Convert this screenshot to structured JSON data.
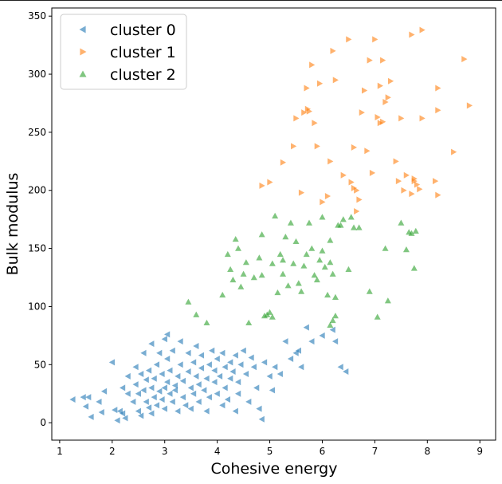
{
  "chart_data": {
    "type": "scatter",
    "xlabel": "Cohesive energy",
    "ylabel": "Bulk modulus",
    "xlim": [
      0.85,
      9.3
    ],
    "ylim": [
      -15,
      357
    ],
    "xticks": [
      1,
      2,
      3,
      4,
      5,
      6,
      7,
      8,
      9
    ],
    "yticks": [
      0,
      50,
      100,
      150,
      200,
      250,
      300,
      350
    ],
    "legend_position": "top-left",
    "grid": false,
    "series": [
      {
        "name": "cluster 0",
        "marker": "triangle-left",
        "color": "#1f77b4",
        "points": [
          [
            1.25,
            20
          ],
          [
            1.45,
            22
          ],
          [
            1.5,
            14
          ],
          [
            1.55,
            22
          ],
          [
            1.6,
            5
          ],
          [
            1.75,
            18
          ],
          [
            1.8,
            9
          ],
          [
            1.85,
            27
          ],
          [
            2.0,
            52
          ],
          [
            2.05,
            11
          ],
          [
            2.1,
            2
          ],
          [
            2.15,
            10
          ],
          [
            2.2,
            8
          ],
          [
            2.2,
            30
          ],
          [
            2.25,
            4
          ],
          [
            2.3,
            40
          ],
          [
            2.3,
            25
          ],
          [
            2.4,
            18
          ],
          [
            2.45,
            48
          ],
          [
            2.45,
            33
          ],
          [
            2.5,
            10
          ],
          [
            2.5,
            25
          ],
          [
            2.55,
            42
          ],
          [
            2.55,
            6
          ],
          [
            2.6,
            28
          ],
          [
            2.6,
            60
          ],
          [
            2.65,
            18
          ],
          [
            2.65,
            37
          ],
          [
            2.7,
            13
          ],
          [
            2.7,
            45
          ],
          [
            2.75,
            30
          ],
          [
            2.75,
            8
          ],
          [
            2.75,
            68
          ],
          [
            2.8,
            22
          ],
          [
            2.8,
            38
          ],
          [
            2.85,
            50
          ],
          [
            2.85,
            15
          ],
          [
            2.9,
            27
          ],
          [
            2.9,
            60
          ],
          [
            2.95,
            20
          ],
          [
            2.95,
            42
          ],
          [
            3.0,
            72
          ],
          [
            3.0,
            30
          ],
          [
            3.0,
            12
          ],
          [
            3.05,
            35
          ],
          [
            3.05,
            55
          ],
          [
            3.05,
            76
          ],
          [
            3.1,
            25
          ],
          [
            3.1,
            45
          ],
          [
            3.15,
            18
          ],
          [
            3.15,
            62
          ],
          [
            3.2,
            32
          ],
          [
            3.2,
            28
          ],
          [
            3.25,
            40
          ],
          [
            3.25,
            10
          ],
          [
            3.3,
            50
          ],
          [
            3.3,
            70
          ],
          [
            3.35,
            22
          ],
          [
            3.35,
            36
          ],
          [
            3.4,
            15
          ],
          [
            3.45,
            44
          ],
          [
            3.45,
            60
          ],
          [
            3.5,
            30
          ],
          [
            3.5,
            12
          ],
          [
            3.55,
            52
          ],
          [
            3.55,
            25
          ],
          [
            3.6,
            66
          ],
          [
            3.6,
            40
          ],
          [
            3.65,
            33
          ],
          [
            3.65,
            18
          ],
          [
            3.7,
            47
          ],
          [
            3.7,
            58
          ],
          [
            3.75,
            28
          ],
          [
            3.8,
            38
          ],
          [
            3.8,
            10
          ],
          [
            3.85,
            50
          ],
          [
            3.85,
            22
          ],
          [
            3.9,
            62
          ],
          [
            3.95,
            35
          ],
          [
            3.95,
            45
          ],
          [
            4.0,
            55
          ],
          [
            4.0,
            25
          ],
          [
            4.05,
            40
          ],
          [
            4.1,
            60
          ],
          [
            4.1,
            15
          ],
          [
            4.15,
            48
          ],
          [
            4.15,
            30
          ],
          [
            4.2,
            20
          ],
          [
            4.25,
            52
          ],
          [
            4.25,
            38
          ],
          [
            4.3,
            44
          ],
          [
            4.35,
            58
          ],
          [
            4.35,
            10
          ],
          [
            4.4,
            35
          ],
          [
            4.4,
            25
          ],
          [
            4.45,
            50
          ],
          [
            4.5,
            62
          ],
          [
            4.55,
            42
          ],
          [
            4.6,
            18
          ],
          [
            4.65,
            56
          ],
          [
            4.7,
            48
          ],
          [
            4.75,
            30
          ],
          [
            4.8,
            12
          ],
          [
            4.85,
            3
          ],
          [
            4.9,
            52
          ],
          [
            5.0,
            40
          ],
          [
            5.05,
            28
          ],
          [
            5.1,
            48
          ],
          [
            5.2,
            42
          ],
          [
            5.3,
            70
          ],
          [
            5.4,
            55
          ],
          [
            5.5,
            60
          ],
          [
            5.55,
            62
          ],
          [
            5.6,
            48
          ],
          [
            5.7,
            82
          ],
          [
            5.8,
            70
          ],
          [
            6.0,
            75
          ],
          [
            6.2,
            80
          ],
          [
            6.25,
            70
          ],
          [
            6.35,
            48
          ],
          [
            6.45,
            44
          ]
        ]
      },
      {
        "name": "cluster 1",
        "marker": "triangle-right",
        "color": "#ff7f0e",
        "points": [
          [
            4.85,
            204
          ],
          [
            5.0,
            207
          ],
          [
            5.25,
            224
          ],
          [
            5.45,
            238
          ],
          [
            5.5,
            262
          ],
          [
            5.6,
            198
          ],
          [
            5.65,
            267
          ],
          [
            5.7,
            288
          ],
          [
            5.72,
            270
          ],
          [
            5.75,
            268
          ],
          [
            5.8,
            308
          ],
          [
            5.85,
            258
          ],
          [
            5.9,
            238
          ],
          [
            5.95,
            292
          ],
          [
            6.0,
            190
          ],
          [
            6.1,
            195
          ],
          [
            6.15,
            225
          ],
          [
            6.2,
            320
          ],
          [
            6.25,
            295
          ],
          [
            6.4,
            213
          ],
          [
            6.5,
            330
          ],
          [
            6.55,
            207
          ],
          [
            6.6,
            237
          ],
          [
            6.6,
            202
          ],
          [
            6.65,
            200
          ],
          [
            6.65,
            182
          ],
          [
            6.7,
            192
          ],
          [
            6.75,
            267
          ],
          [
            6.8,
            286
          ],
          [
            6.85,
            234
          ],
          [
            6.9,
            312
          ],
          [
            6.95,
            215
          ],
          [
            7.0,
            330
          ],
          [
            7.05,
            263
          ],
          [
            7.1,
            258
          ],
          [
            7.1,
            290
          ],
          [
            7.15,
            312
          ],
          [
            7.15,
            259
          ],
          [
            7.2,
            276
          ],
          [
            7.25,
            280
          ],
          [
            7.3,
            294
          ],
          [
            7.4,
            225
          ],
          [
            7.45,
            208
          ],
          [
            7.5,
            262
          ],
          [
            7.55,
            200
          ],
          [
            7.6,
            213
          ],
          [
            7.7,
            197
          ],
          [
            7.7,
            334
          ],
          [
            7.75,
            210
          ],
          [
            7.75,
            208
          ],
          [
            7.8,
            205
          ],
          [
            7.85,
            201
          ],
          [
            7.9,
            262
          ],
          [
            7.9,
            338
          ],
          [
            8.15,
            208
          ],
          [
            8.2,
            196
          ],
          [
            8.2,
            288
          ],
          [
            8.2,
            269
          ],
          [
            8.5,
            233
          ],
          [
            8.7,
            313
          ],
          [
            8.8,
            273
          ]
        ]
      },
      {
        "name": "cluster 2",
        "marker": "triangle-up",
        "color": "#2ca02c",
        "points": [
          [
            3.45,
            104
          ],
          [
            3.6,
            93
          ],
          [
            3.8,
            86
          ],
          [
            4.1,
            110
          ],
          [
            4.2,
            145
          ],
          [
            4.25,
            132
          ],
          [
            4.3,
            123
          ],
          [
            4.35,
            158
          ],
          [
            4.4,
            150
          ],
          [
            4.45,
            117
          ],
          [
            4.5,
            128
          ],
          [
            4.55,
            138
          ],
          [
            4.6,
            86
          ],
          [
            4.7,
            125
          ],
          [
            4.8,
            142
          ],
          [
            4.85,
            127
          ],
          [
            4.85,
            162
          ],
          [
            4.9,
            92
          ],
          [
            4.95,
            93
          ],
          [
            5.0,
            95
          ],
          [
            5.05,
            91
          ],
          [
            5.05,
            137
          ],
          [
            5.1,
            178
          ],
          [
            5.15,
            112
          ],
          [
            5.2,
            145
          ],
          [
            5.25,
            128
          ],
          [
            5.25,
            140
          ],
          [
            5.3,
            160
          ],
          [
            5.35,
            118
          ],
          [
            5.4,
            172
          ],
          [
            5.45,
            137
          ],
          [
            5.5,
            156
          ],
          [
            5.55,
            120
          ],
          [
            5.6,
            113
          ],
          [
            5.65,
            135
          ],
          [
            5.7,
            145
          ],
          [
            5.75,
            172
          ],
          [
            5.8,
            150
          ],
          [
            5.85,
            127
          ],
          [
            5.9,
            123
          ],
          [
            5.95,
            140
          ],
          [
            6.0,
            148
          ],
          [
            6.0,
            177
          ],
          [
            6.05,
            134
          ],
          [
            6.1,
            110
          ],
          [
            6.15,
            157
          ],
          [
            6.15,
            138
          ],
          [
            6.2,
            128
          ],
          [
            6.25,
            108
          ],
          [
            6.3,
            170
          ],
          [
            6.35,
            170
          ],
          [
            6.4,
            175
          ],
          [
            6.5,
            132
          ],
          [
            6.55,
            177
          ],
          [
            6.6,
            168
          ],
          [
            6.7,
            168
          ],
          [
            6.9,
            113
          ],
          [
            7.05,
            91
          ],
          [
            7.2,
            150
          ],
          [
            7.25,
            105
          ],
          [
            7.5,
            172
          ],
          [
            7.6,
            149
          ],
          [
            7.65,
            164
          ],
          [
            7.7,
            163
          ],
          [
            7.75,
            133
          ],
          [
            7.78,
            165
          ],
          [
            6.15,
            84
          ],
          [
            6.2,
            88
          ],
          [
            6.25,
            92
          ]
        ]
      }
    ]
  }
}
